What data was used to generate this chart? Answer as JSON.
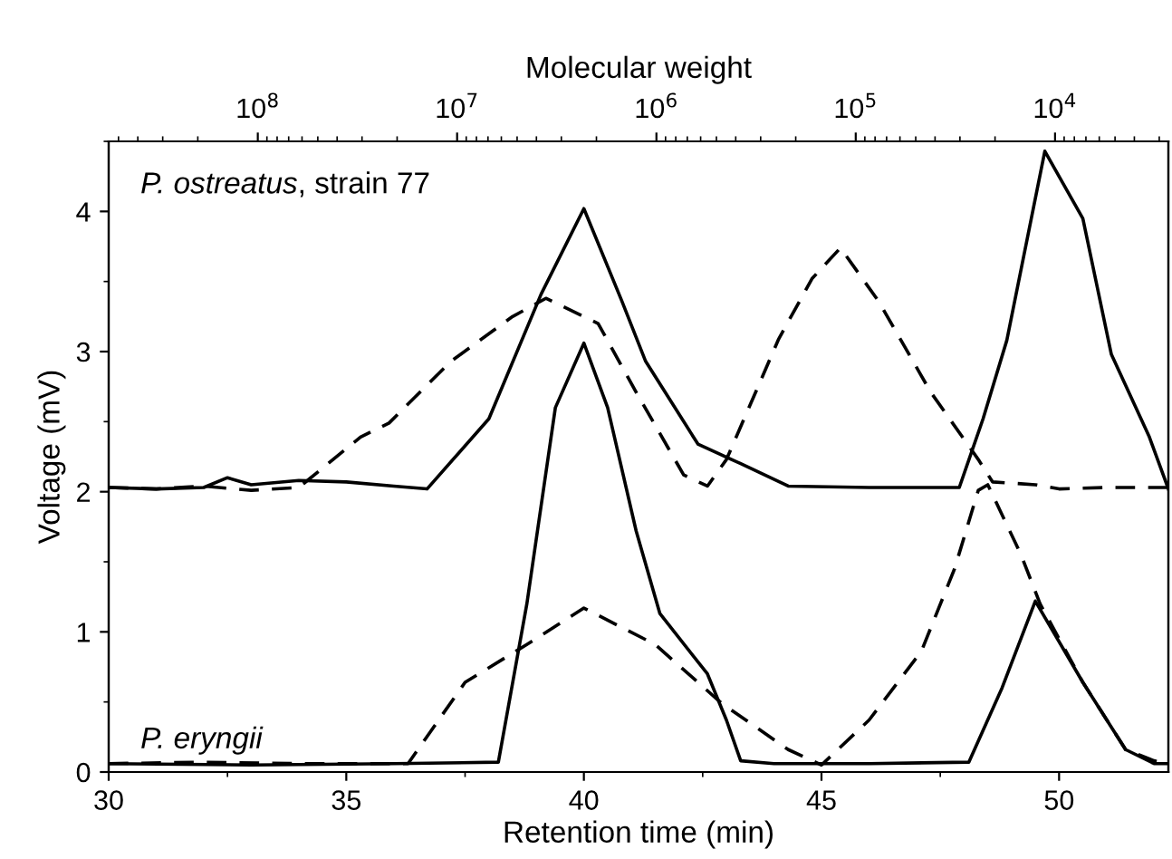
{
  "chart_data": {
    "type": "line",
    "xlabel": "Retention time (min)",
    "ylabel": "Voltage (mV)",
    "x2label": "Molecular weight",
    "xlim": [
      30,
      52.3
    ],
    "xticks": [
      30,
      35,
      40,
      45,
      50
    ],
    "ylim": [
      0,
      4.5
    ],
    "yticks": [
      0,
      1,
      2,
      3,
      4
    ],
    "x2lim": [
      560000000,
      2700
    ],
    "x2ticks": [
      {
        "value": 100000000,
        "label": "10$^{8}$"
      },
      {
        "value": 10000000,
        "label": "10$^{7}$"
      },
      {
        "value": 1000000,
        "label": "10$^{6}$"
      },
      {
        "value": 100000,
        "label": "10$^{5}$"
      },
      {
        "value": 10000,
        "label": "10$^{4}$"
      }
    ],
    "log": "x2",
    "grid": false,
    "legend": false,
    "series": [
      {
        "color": "#000000",
        "line_style": "solid",
        "x": [
          30,
          31,
          32,
          32.5,
          33,
          34,
          35,
          36,
          36.7,
          38.0,
          39.1,
          40.0,
          40.8,
          41.3,
          42.4,
          43.3,
          44.3,
          46,
          47.9,
          48.4,
          48.9,
          49.7,
          50.5,
          51.1,
          51.9,
          52.3
        ],
        "values": [
          2.03,
          2.02,
          2.03,
          2.1,
          2.05,
          2.08,
          2.07,
          2.04,
          2.02,
          2.52,
          3.41,
          4.02,
          3.36,
          2.93,
          2.34,
          2.2,
          2.04,
          2.03,
          2.03,
          2.52,
          3.08,
          4.43,
          3.95,
          2.98,
          2.39,
          2.02
        ]
      },
      {
        "color": "#000000",
        "line_style": "dashed",
        "x": [
          30,
          31,
          32,
          33,
          34.0,
          35.3,
          35.9,
          37.2,
          38.5,
          39.2,
          40.3,
          41.1,
          42.1,
          42.6,
          43.0,
          44.1,
          44.8,
          45.4,
          46.2,
          47.3,
          48.3,
          48.6,
          49.5,
          50,
          51,
          52.3
        ],
        "values": [
          2.03,
          2.02,
          2.04,
          2.01,
          2.03,
          2.39,
          2.49,
          2.93,
          3.25,
          3.38,
          3.2,
          2.71,
          2.12,
          2.04,
          2.23,
          3.09,
          3.52,
          3.74,
          3.36,
          2.71,
          2.23,
          2.07,
          2.05,
          2.02,
          2.03,
          2.03
        ]
      },
      {
        "color": "#000000",
        "line_style": "solid",
        "x": [
          30,
          33,
          36,
          38.2,
          38.8,
          39.4,
          40.0,
          40.5,
          41.1,
          41.6,
          42.6,
          43.0,
          43.3,
          44,
          46,
          48.1,
          48.8,
          49.5,
          50.5,
          51.4,
          52.0,
          52.3
        ],
        "values": [
          0.06,
          0.05,
          0.06,
          0.07,
          1.2,
          2.6,
          3.06,
          2.6,
          1.72,
          1.13,
          0.7,
          0.37,
          0.08,
          0.06,
          0.06,
          0.07,
          0.6,
          1.22,
          0.64,
          0.16,
          0.06,
          0.06
        ]
      },
      {
        "color": "#000000",
        "line_style": "dashed",
        "x": [
          30,
          32,
          34,
          36.3,
          37.5,
          38.8,
          40.0,
          41.5,
          42.9,
          44.3,
          45.0,
          46.0,
          47.1,
          47.8,
          48.3,
          48.5,
          49.2,
          49.6,
          50.5,
          51.4,
          52.0,
          52.3
        ],
        "values": [
          0.06,
          0.07,
          0.06,
          0.06,
          0.64,
          0.91,
          1.17,
          0.91,
          0.49,
          0.16,
          0.05,
          0.37,
          0.86,
          1.45,
          2.01,
          2.05,
          1.55,
          1.2,
          0.64,
          0.16,
          0.08,
          0.06
        ]
      }
    ],
    "annotations": [
      "P. ostreatus, strain 77",
      "P. eryngii"
    ]
  }
}
